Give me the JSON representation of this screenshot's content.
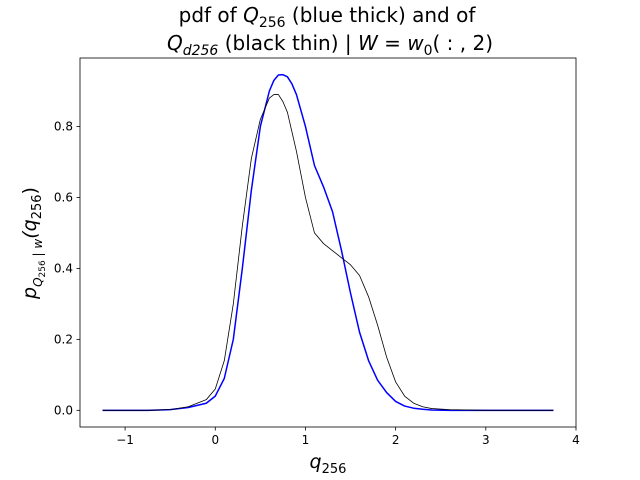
{
  "chart_data": {
    "type": "line",
    "title": {
      "line1": {
        "prefix": "pdf of ",
        "var": "Q",
        "var_sub": "256",
        "suffix": " (blue thick) and of"
      },
      "line2": {
        "var": "Q",
        "var_sub": "d256",
        "middle": " (black thin)  | ",
        "cond": "W",
        "eq": " = ",
        "w": "w",
        "w_sub": "0",
        "args": "( : , 2)"
      }
    },
    "xlabel": {
      "var": "q",
      "sub": "256"
    },
    "ylabel": {
      "p": "p",
      "sub_q": "Q",
      "sub_q_sub": "256",
      "sub_bar": " | ",
      "sub_w": "w",
      "rest": "(q",
      "rest_sub": "256",
      "close": ")"
    },
    "xlim": [
      -1.5,
      4.0
    ],
    "ylim": [
      -0.047,
      0.993
    ],
    "xticks": [
      -1,
      0,
      1,
      2,
      3,
      4
    ],
    "xtick_labels": [
      "−1",
      "0",
      "1",
      "2",
      "3",
      "4"
    ],
    "yticks": [
      0.0,
      0.2,
      0.4,
      0.6,
      0.8
    ],
    "ytick_labels": [
      "0.0",
      "0.2",
      "0.4",
      "0.6",
      "0.8"
    ],
    "grid": false,
    "legend": "none",
    "series": [
      {
        "color": "#0000ff",
        "style": "thick",
        "x": [
          -1.25,
          -0.75,
          -0.5,
          -0.3,
          -0.1,
          0.0,
          0.1,
          0.2,
          0.3,
          0.4,
          0.5,
          0.6,
          0.65,
          0.7,
          0.75,
          0.8,
          0.85,
          0.9,
          1.0,
          1.1,
          1.2,
          1.3,
          1.4,
          1.5,
          1.6,
          1.7,
          1.8,
          1.9,
          2.0,
          2.1,
          2.2,
          2.3,
          2.4,
          2.6,
          3.0,
          3.75
        ],
        "y": [
          0.0,
          0.0,
          0.002,
          0.008,
          0.02,
          0.04,
          0.09,
          0.2,
          0.4,
          0.62,
          0.8,
          0.9,
          0.93,
          0.945,
          0.946,
          0.94,
          0.92,
          0.89,
          0.8,
          0.69,
          0.63,
          0.56,
          0.45,
          0.33,
          0.22,
          0.14,
          0.085,
          0.05,
          0.025,
          0.012,
          0.006,
          0.003,
          0.001,
          0.0,
          0.0,
          0.0
        ]
      },
      {
        "color": "#000000",
        "style": "thin",
        "x": [
          -1.25,
          -0.75,
          -0.5,
          -0.3,
          -0.1,
          0.0,
          0.1,
          0.2,
          0.3,
          0.4,
          0.5,
          0.6,
          0.65,
          0.7,
          0.75,
          0.8,
          0.9,
          1.0,
          1.1,
          1.2,
          1.3,
          1.4,
          1.5,
          1.6,
          1.7,
          1.8,
          1.9,
          2.0,
          2.1,
          2.2,
          2.3,
          2.4,
          2.6,
          3.0,
          3.75
        ],
        "y": [
          0.0,
          0.0,
          0.002,
          0.01,
          0.03,
          0.06,
          0.14,
          0.3,
          0.52,
          0.71,
          0.82,
          0.88,
          0.89,
          0.89,
          0.87,
          0.84,
          0.73,
          0.6,
          0.5,
          0.47,
          0.45,
          0.43,
          0.41,
          0.38,
          0.32,
          0.24,
          0.15,
          0.08,
          0.04,
          0.02,
          0.01,
          0.005,
          0.002,
          0.0,
          0.0
        ]
      }
    ]
  }
}
